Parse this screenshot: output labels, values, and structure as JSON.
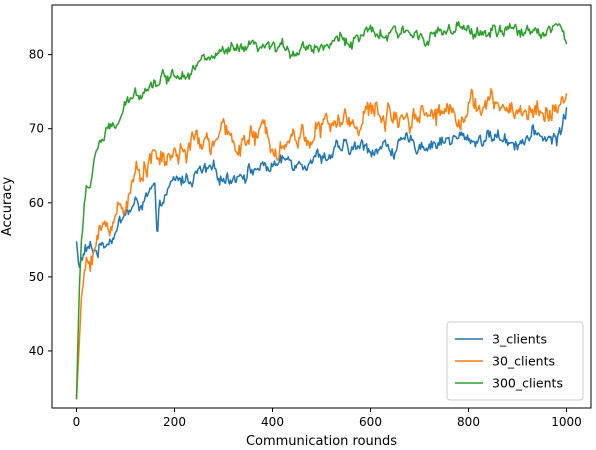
{
  "chart_data": {
    "type": "line",
    "title": "",
    "xlabel": "Communication rounds",
    "ylabel": "Accuracy",
    "xlim": [
      -50,
      1050
    ],
    "ylim": [
      32.3,
      86.7
    ],
    "xticks": [
      0,
      200,
      400,
      600,
      800,
      1000
    ],
    "yticks": [
      40,
      50,
      60,
      70,
      80
    ],
    "grid": false,
    "legend_position": "lower-right",
    "n_rounds": 1000,
    "series": [
      {
        "name": "3_clients",
        "color": "#1f77b4",
        "anchors": [
          [
            0,
            54.8
          ],
          [
            5,
            51.0
          ],
          [
            10,
            52.5
          ],
          [
            20,
            53.5
          ],
          [
            40,
            53.5
          ],
          [
            60,
            55.0
          ],
          [
            80,
            56.5
          ],
          [
            100,
            58.5
          ],
          [
            120,
            59.5
          ],
          [
            140,
            60.5
          ],
          [
            160,
            61.5
          ],
          [
            165,
            53.0
          ],
          [
            170,
            59.5
          ],
          [
            180,
            60.5
          ],
          [
            200,
            62.5
          ],
          [
            250,
            64.0
          ],
          [
            300,
            63.5
          ],
          [
            350,
            64.5
          ],
          [
            400,
            65.0
          ],
          [
            450,
            66.0
          ],
          [
            500,
            66.5
          ],
          [
            550,
            67.0
          ],
          [
            600,
            67.5
          ],
          [
            650,
            67.5
          ],
          [
            700,
            68.0
          ],
          [
            750,
            68.5
          ],
          [
            800,
            68.5
          ],
          [
            850,
            69.0
          ],
          [
            900,
            68.5
          ],
          [
            950,
            69.0
          ],
          [
            980,
            68.5
          ],
          [
            1000,
            72.5
          ]
        ],
        "noise": 0.9
      },
      {
        "name": "30_clients",
        "color": "#ff7f0e",
        "anchors": [
          [
            0,
            33.5
          ],
          [
            5,
            40.0
          ],
          [
            10,
            47.0
          ],
          [
            20,
            51.5
          ],
          [
            40,
            55.0
          ],
          [
            60,
            56.5
          ],
          [
            80,
            58.5
          ],
          [
            100,
            60.5
          ],
          [
            120,
            63.0
          ],
          [
            140,
            66.0
          ],
          [
            160,
            66.5
          ],
          [
            180,
            65.5
          ],
          [
            200,
            66.5
          ],
          [
            250,
            68.0
          ],
          [
            300,
            68.5
          ],
          [
            350,
            68.5
          ],
          [
            400,
            69.0
          ],
          [
            450,
            69.0
          ],
          [
            500,
            70.0
          ],
          [
            550,
            71.0
          ],
          [
            600,
            72.0
          ],
          [
            650,
            72.0
          ],
          [
            700,
            72.5
          ],
          [
            750,
            72.5
          ],
          [
            800,
            73.0
          ],
          [
            850,
            73.0
          ],
          [
            900,
            72.5
          ],
          [
            950,
            72.5
          ],
          [
            1000,
            73.5
          ]
        ],
        "noise": 1.4
      },
      {
        "name": "300_clients",
        "color": "#2ca02c",
        "anchors": [
          [
            0,
            33.5
          ],
          [
            5,
            47.0
          ],
          [
            10,
            55.0
          ],
          [
            20,
            61.5
          ],
          [
            30,
            63.0
          ],
          [
            40,
            67.5
          ],
          [
            60,
            69.0
          ],
          [
            80,
            70.5
          ],
          [
            100,
            72.5
          ],
          [
            120,
            74.5
          ],
          [
            140,
            76.0
          ],
          [
            160,
            76.5
          ],
          [
            200,
            77.5
          ],
          [
            250,
            79.0
          ],
          [
            300,
            80.0
          ],
          [
            350,
            80.5
          ],
          [
            400,
            80.5
          ],
          [
            450,
            81.0
          ],
          [
            500,
            81.5
          ],
          [
            550,
            82.0
          ],
          [
            600,
            82.5
          ],
          [
            650,
            82.5
          ],
          [
            700,
            83.0
          ],
          [
            750,
            83.0
          ],
          [
            800,
            83.0
          ],
          [
            850,
            83.0
          ],
          [
            900,
            83.0
          ],
          [
            950,
            83.5
          ],
          [
            980,
            84.0
          ],
          [
            1000,
            82.0
          ]
        ],
        "noise": 0.8
      }
    ]
  }
}
